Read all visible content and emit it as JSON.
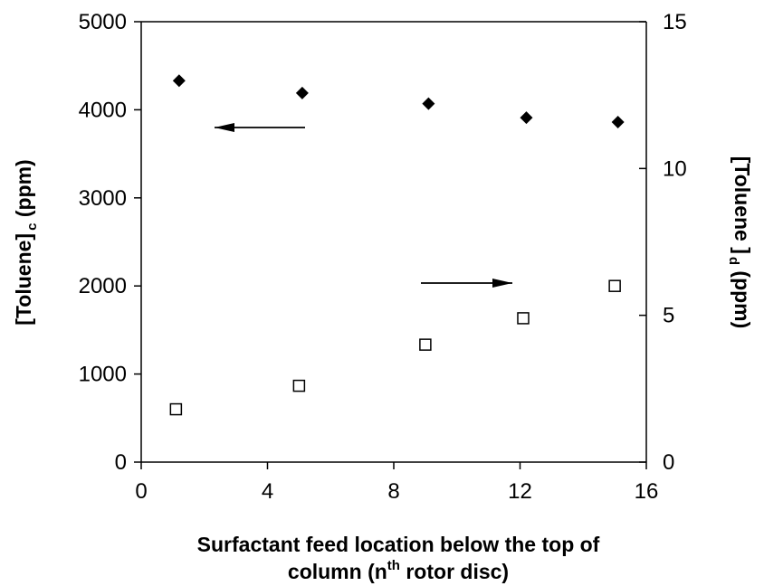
{
  "chart_data": {
    "type": "scatter",
    "x_axis": {
      "label_line1": "Surfactant feed location below the top of",
      "label_line2_pre": "column (n",
      "label_line2_sup": "th",
      "label_line2_post": " rotor disc)",
      "range": [
        0,
        16
      ],
      "ticks": [
        0,
        4,
        8,
        12,
        16
      ],
      "tick_labels": [
        "0",
        "4",
        "8",
        "12",
        "16"
      ]
    },
    "y_left": {
      "label_main": "[Toluene]",
      "label_sub": "c",
      "label_unit": " (ppm)",
      "range": [
        0,
        5000
      ],
      "ticks": [
        0,
        1000,
        2000,
        3000,
        4000,
        5000
      ],
      "tick_labels": [
        "0",
        "1000",
        "2000",
        "3000",
        "4000",
        "5000"
      ]
    },
    "y_right": {
      "label_main": "[Toluene ]",
      "label_sub": "d",
      "label_unit": " (ppm)",
      "range": [
        0,
        15
      ],
      "ticks": [
        0,
        5,
        10,
        15
      ],
      "tick_labels": [
        "0",
        "5",
        "10",
        "15"
      ]
    },
    "series": [
      {
        "axis": "left",
        "marker": "filled-diamond",
        "x": [
          1.2,
          5.1,
          9.1,
          12.2,
          15.1
        ],
        "y": [
          4330,
          4190,
          4070,
          3910,
          3860
        ]
      },
      {
        "axis": "right",
        "marker": "open-square",
        "x": [
          1.1,
          5.0,
          9.0,
          12.1,
          15.0
        ],
        "y": [
          1.8,
          2.6,
          4.0,
          4.9,
          6.0
        ]
      }
    ],
    "annotations": [
      {
        "type": "arrow",
        "direction": "left",
        "points_to_axis": "left"
      },
      {
        "type": "arrow",
        "direction": "right",
        "points_to_axis": "right"
      }
    ],
    "grid": false,
    "legend": "none",
    "colors": {
      "marker": "#000000",
      "axis": "#000000",
      "background": "#ffffff"
    }
  }
}
